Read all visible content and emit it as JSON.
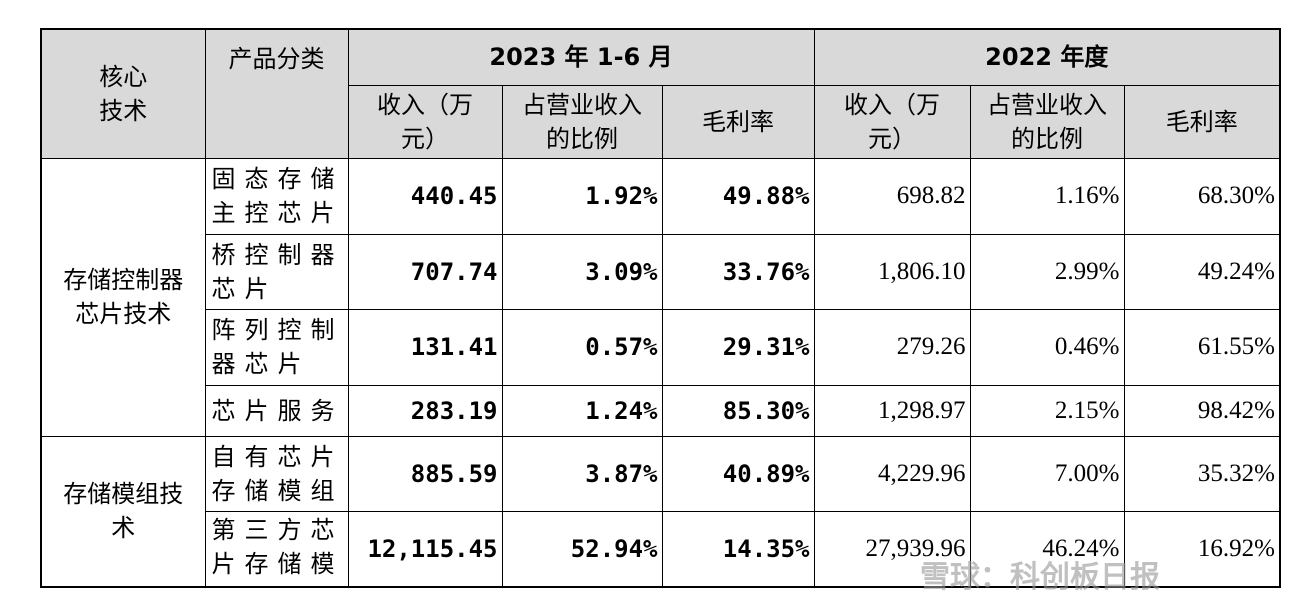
{
  "table": {
    "header": {
      "core_tech": "核心技术",
      "product": "产品分类",
      "periods": [
        "2023 年 1-6 月",
        "2022 年度"
      ],
      "columns": [
        "收入（万元）",
        "占营业收入的比例",
        "毛利率"
      ]
    },
    "groups": [
      {
        "tech": "存储控制器芯片技术",
        "rows": [
          {
            "product": "固态存储主控芯片",
            "values": [
              "440.45",
              "1.92%",
              "49.88%",
              "698.82",
              "1.16%",
              "68.30%"
            ]
          },
          {
            "product": "桥控制器芯片",
            "values": [
              "707.74",
              "3.09%",
              "33.76%",
              "1,806.10",
              "2.99%",
              "49.24%"
            ]
          },
          {
            "product": "阵列控制器芯片",
            "values": [
              "131.41",
              "0.57%",
              "29.31%",
              "279.26",
              "0.46%",
              "61.55%"
            ]
          },
          {
            "product": "芯片服务",
            "values": [
              "283.19",
              "1.24%",
              "85.30%",
              "1,298.97",
              "2.15%",
              "98.42%"
            ]
          }
        ]
      },
      {
        "tech": "存储模组技术",
        "rows": [
          {
            "product": "自有芯片存储模组",
            "values": [
              "885.59",
              "3.87%",
              "40.89%",
              "4,229.96",
              "7.00%",
              "35.32%"
            ]
          },
          {
            "product": "第三方芯片存储模组",
            "values": [
              "12,115.45",
              "52.94%",
              "14.35%",
              "27,939.96",
              "46.24%",
              "16.92%"
            ]
          }
        ]
      }
    ]
  },
  "watermark": "雪球：科创板日报"
}
